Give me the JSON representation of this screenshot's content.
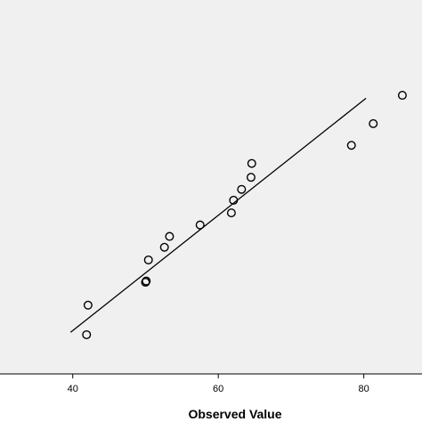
{
  "chart_data": {
    "type": "scatter",
    "title": "",
    "xlabel": "Observed Value",
    "ylabel": "",
    "xlim": [
      30,
      88
    ],
    "ylim": [
      28,
      90
    ],
    "x_ticks": [
      40,
      60,
      80
    ],
    "x_tick_labels": [
      "40",
      "60",
      "80"
    ],
    "grid": false,
    "legend": "none",
    "colors": {
      "plot_background": "#f0f0f0",
      "marker_stroke": "#000000",
      "line": "#000000"
    },
    "series": [
      {
        "values": [
          {
            "x": 41.9,
            "y": 34.5
          },
          {
            "x": 42.1,
            "y": 39.4
          },
          {
            "x": 50.0,
            "y": 43.2
          },
          {
            "x": 50.1,
            "y": 43.4
          },
          {
            "x": 50.4,
            "y": 46.9
          },
          {
            "x": 52.6,
            "y": 49.0
          },
          {
            "x": 53.3,
            "y": 50.8
          },
          {
            "x": 57.5,
            "y": 52.7
          },
          {
            "x": 61.8,
            "y": 54.7
          },
          {
            "x": 62.1,
            "y": 56.8
          },
          {
            "x": 63.2,
            "y": 58.6
          },
          {
            "x": 64.5,
            "y": 60.6
          },
          {
            "x": 64.6,
            "y": 62.9
          },
          {
            "x": 78.3,
            "y": 65.9
          },
          {
            "x": 81.3,
            "y": 69.5
          },
          {
            "x": 85.3,
            "y": 74.2
          }
        ]
      }
    ],
    "fit_line": {
      "type": "line",
      "values": [
        {
          "x": 39.7,
          "y": 34.9
        },
        {
          "x": 80.3,
          "y": 73.7
        }
      ]
    }
  }
}
